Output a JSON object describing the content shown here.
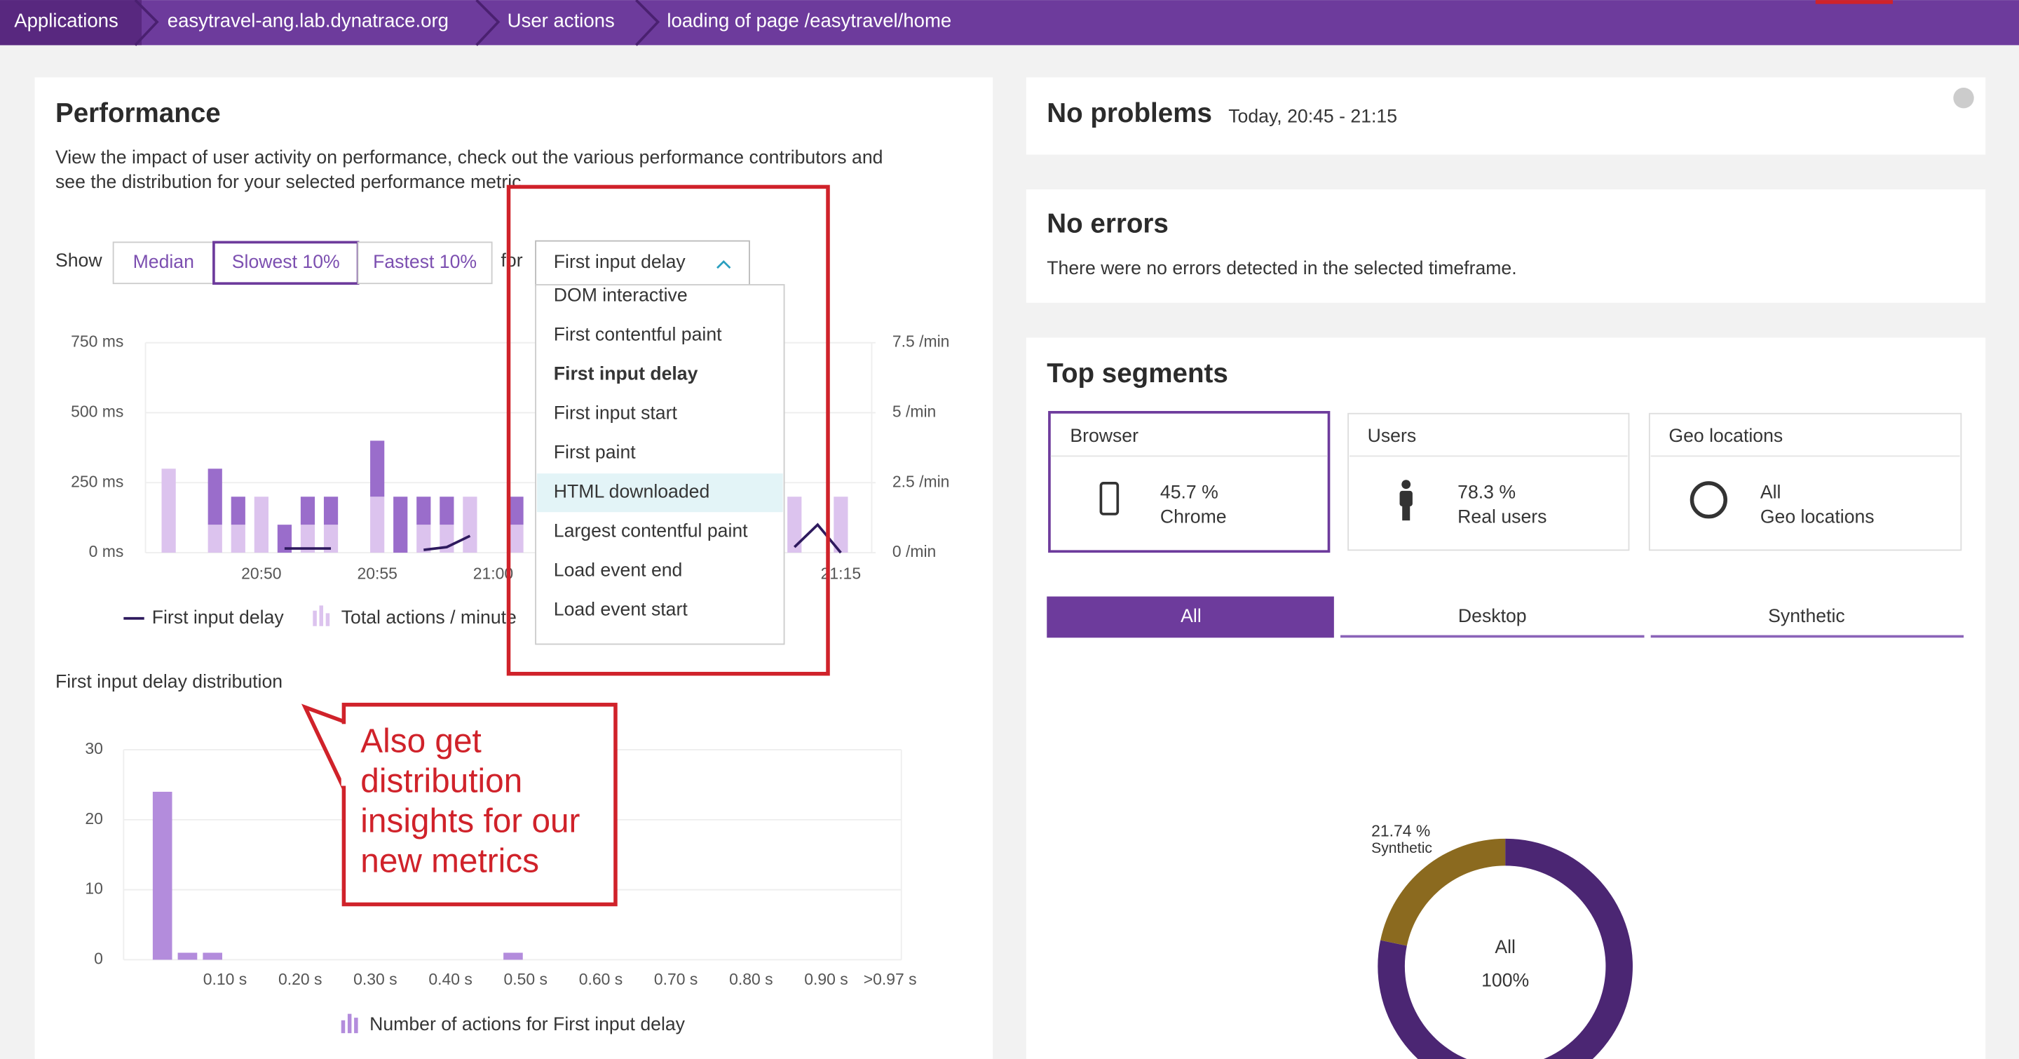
{
  "breadcrumb": [
    "Applications",
    "easytravel-ang.lab.dynatrace.org",
    "User actions",
    "loading of page /easytravel/home"
  ],
  "performance": {
    "title": "Performance",
    "description": [
      "View the impact of user activity on performance, check out the various performance contributors and",
      "see the distribution for your selected performance metric."
    ],
    "show_label": "Show",
    "modes": [
      "Median",
      "Slowest 10%",
      "Fastest 10%"
    ],
    "selected_mode": 1,
    "for_label": "for",
    "metric": "First input delay",
    "options": [
      "DOM interactive",
      "First contentful paint",
      "First input delay",
      "First input start",
      "First paint",
      "HTML downloaded",
      "Largest contentful paint",
      "Load event end",
      "Load event start"
    ],
    "selected_option": 2,
    "hovered_option": 5,
    "distribution_title": "First input delay distribution"
  },
  "callout": [
    "Also get",
    "distribution",
    "insights for our",
    "new metrics"
  ],
  "problems": {
    "title": "No problems",
    "timeframe": "Today, 20:45 - 21:15"
  },
  "errors": {
    "title": "No errors",
    "text": "There were no errors detected in the selected timeframe."
  },
  "segments": {
    "title": "Top segments",
    "cards": [
      {
        "label": "Browser",
        "value": "45.7 %",
        "detail": "Chrome"
      },
      {
        "label": "Users",
        "value": "78.3 %",
        "detail": "Real users"
      },
      {
        "label": "Geo locations",
        "value": "All",
        "detail": "Geo locations"
      }
    ],
    "tabs": [
      "All",
      "Desktop",
      "Synthetic"
    ]
  },
  "chart_data": [
    {
      "type": "bar-line",
      "categories": [
        null,
        null,
        null,
        null,
        null,
        "20:50",
        null,
        null,
        null,
        null,
        "20:55",
        null,
        null,
        null,
        null,
        "21:00",
        null,
        null,
        null,
        null,
        null,
        null,
        null,
        null,
        null,
        null,
        null,
        null,
        null,
        null,
        "21:15",
        null
      ],
      "series": [
        {
          "name": "First input delay",
          "type": "line",
          "axis": "y",
          "color": "#2e1a5e",
          "values": [
            null,
            20,
            null,
            null,
            null,
            null,
            15,
            15,
            15,
            null,
            null,
            null,
            10,
            20,
            60,
            null,
            null,
            null,
            null,
            null,
            null,
            null,
            null,
            null,
            null,
            null,
            null,
            null,
            20,
            100,
            0,
            null
          ]
        },
        {
          "name": "Total actions / minute",
          "type": "bar",
          "axis": "y2",
          "color": "#dcc3ee",
          "values": [
            null,
            3,
            null,
            1,
            1,
            2,
            null,
            1,
            1,
            null,
            2,
            null,
            1,
            1,
            2,
            null,
            1,
            null,
            null,
            null,
            null,
            null,
            null,
            null,
            null,
            null,
            null,
            null,
            2,
            null,
            2,
            null
          ]
        },
        {
          "type": "bar",
          "axis": "y2",
          "color": "#9a6dcb",
          "values": [
            null,
            null,
            null,
            2,
            1,
            null,
            1,
            1,
            1,
            null,
            2,
            2,
            1,
            1,
            null,
            null,
            1,
            null,
            null,
            null,
            null,
            null,
            null,
            null,
            null,
            null,
            null,
            null,
            null,
            null,
            null,
            null
          ]
        }
      ],
      "ylim": [
        0,
        750
      ],
      "yticks": [
        {
          "value": 0,
          "label": "0 ms"
        },
        {
          "value": 250,
          "label": "250 ms"
        },
        {
          "value": 500,
          "label": "500 ms"
        },
        {
          "value": 750,
          "label": "750 ms"
        }
      ],
      "y2lim": [
        0,
        7.5
      ],
      "y2ticks": [
        {
          "value": 0,
          "label": "0 /min"
        },
        {
          "value": 2.5,
          "label": "2.5 /min"
        },
        {
          "value": 5,
          "label": "5 /min"
        },
        {
          "value": 7.5,
          "label": "7.5 /min"
        }
      ],
      "grid": true
    },
    {
      "type": "histogram",
      "legend": "Number of actions for First input delay",
      "color": "#b38cdc",
      "bins": [
        0,
        0.0333,
        0.0667,
        0.1,
        0.1333,
        0.1667,
        0.2,
        0.2333,
        0.2667,
        0.3,
        0.3333,
        0.3667,
        0.4,
        0.4333,
        0.4667,
        0.5,
        0.5333,
        0.5667,
        0.6,
        0.6333,
        0.6667,
        0.7,
        0.7333,
        0.7667,
        0.8,
        0.8333,
        0.8667,
        0.9,
        0.9333,
        0.9667,
        1
      ],
      "values": [
        24,
        1,
        1,
        0,
        0,
        0,
        0,
        0,
        0,
        0,
        0,
        0,
        0,
        0,
        1,
        0,
        0,
        0,
        0,
        0,
        0,
        0,
        0,
        0,
        0,
        0,
        0,
        0,
        0,
        0
      ],
      "xlim": [
        -0.035,
        1.0
      ],
      "xticks": [
        {
          "value": 0.1,
          "label": "0.10 s"
        },
        {
          "value": 0.2,
          "label": "0.20 s"
        },
        {
          "value": 0.3,
          "label": "0.30 s"
        },
        {
          "value": 0.4,
          "label": "0.40 s"
        },
        {
          "value": 0.5,
          "label": "0.50 s"
        },
        {
          "value": 0.6,
          "label": "0.60 s"
        },
        {
          "value": 0.7,
          "label": "0.70 s"
        },
        {
          "value": 0.8,
          "label": "0.80 s"
        },
        {
          "value": 0.9,
          "label": "0.90 s"
        },
        {
          "value": 0.985,
          "label": ">0.97 s"
        }
      ],
      "ylim": [
        0,
        30
      ],
      "yticks": [
        0,
        10,
        20,
        30
      ],
      "grid": true
    },
    {
      "type": "donut",
      "categories": [
        null,
        "Synthetic"
      ],
      "values": [
        78.26,
        21.74
      ],
      "value_labels": [
        null,
        "21.74 %"
      ],
      "colors": [
        "#4b2673",
        "#8b6a1f"
      ],
      "center_label": "All",
      "center_value": "100%"
    }
  ]
}
